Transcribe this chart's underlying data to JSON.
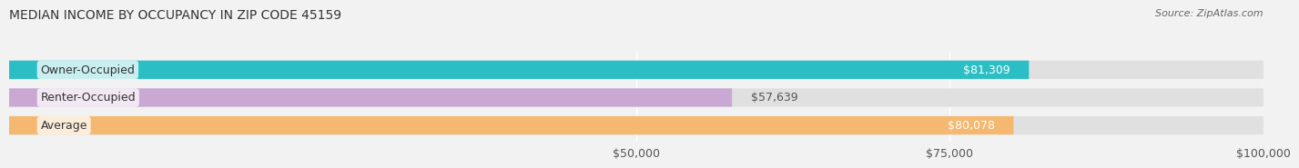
{
  "title": "MEDIAN INCOME BY OCCUPANCY IN ZIP CODE 45159",
  "source": "Source: ZipAtlas.com",
  "categories": [
    "Owner-Occupied",
    "Renter-Occupied",
    "Average"
  ],
  "values": [
    81309,
    57639,
    80078
  ],
  "bar_colors": [
    "#2BBFC5",
    "#C9A8D4",
    "#F5B870"
  ],
  "bar_labels": [
    "$81,309",
    "$57,639",
    "$80,078"
  ],
  "label_colors": [
    "#ffffff",
    "#555555",
    "#ffffff"
  ],
  "xlim": [
    0,
    100000
  ],
  "xticks": [
    50000,
    75000,
    100000
  ],
  "xtick_labels": [
    "$50,000",
    "$75,000",
    "$100,000"
  ],
  "background_color": "#f2f2f2",
  "bar_bg_color": "#e0e0e0",
  "title_fontsize": 10,
  "source_fontsize": 8,
  "tick_fontsize": 9,
  "label_fontsize": 9,
  "category_fontsize": 9
}
